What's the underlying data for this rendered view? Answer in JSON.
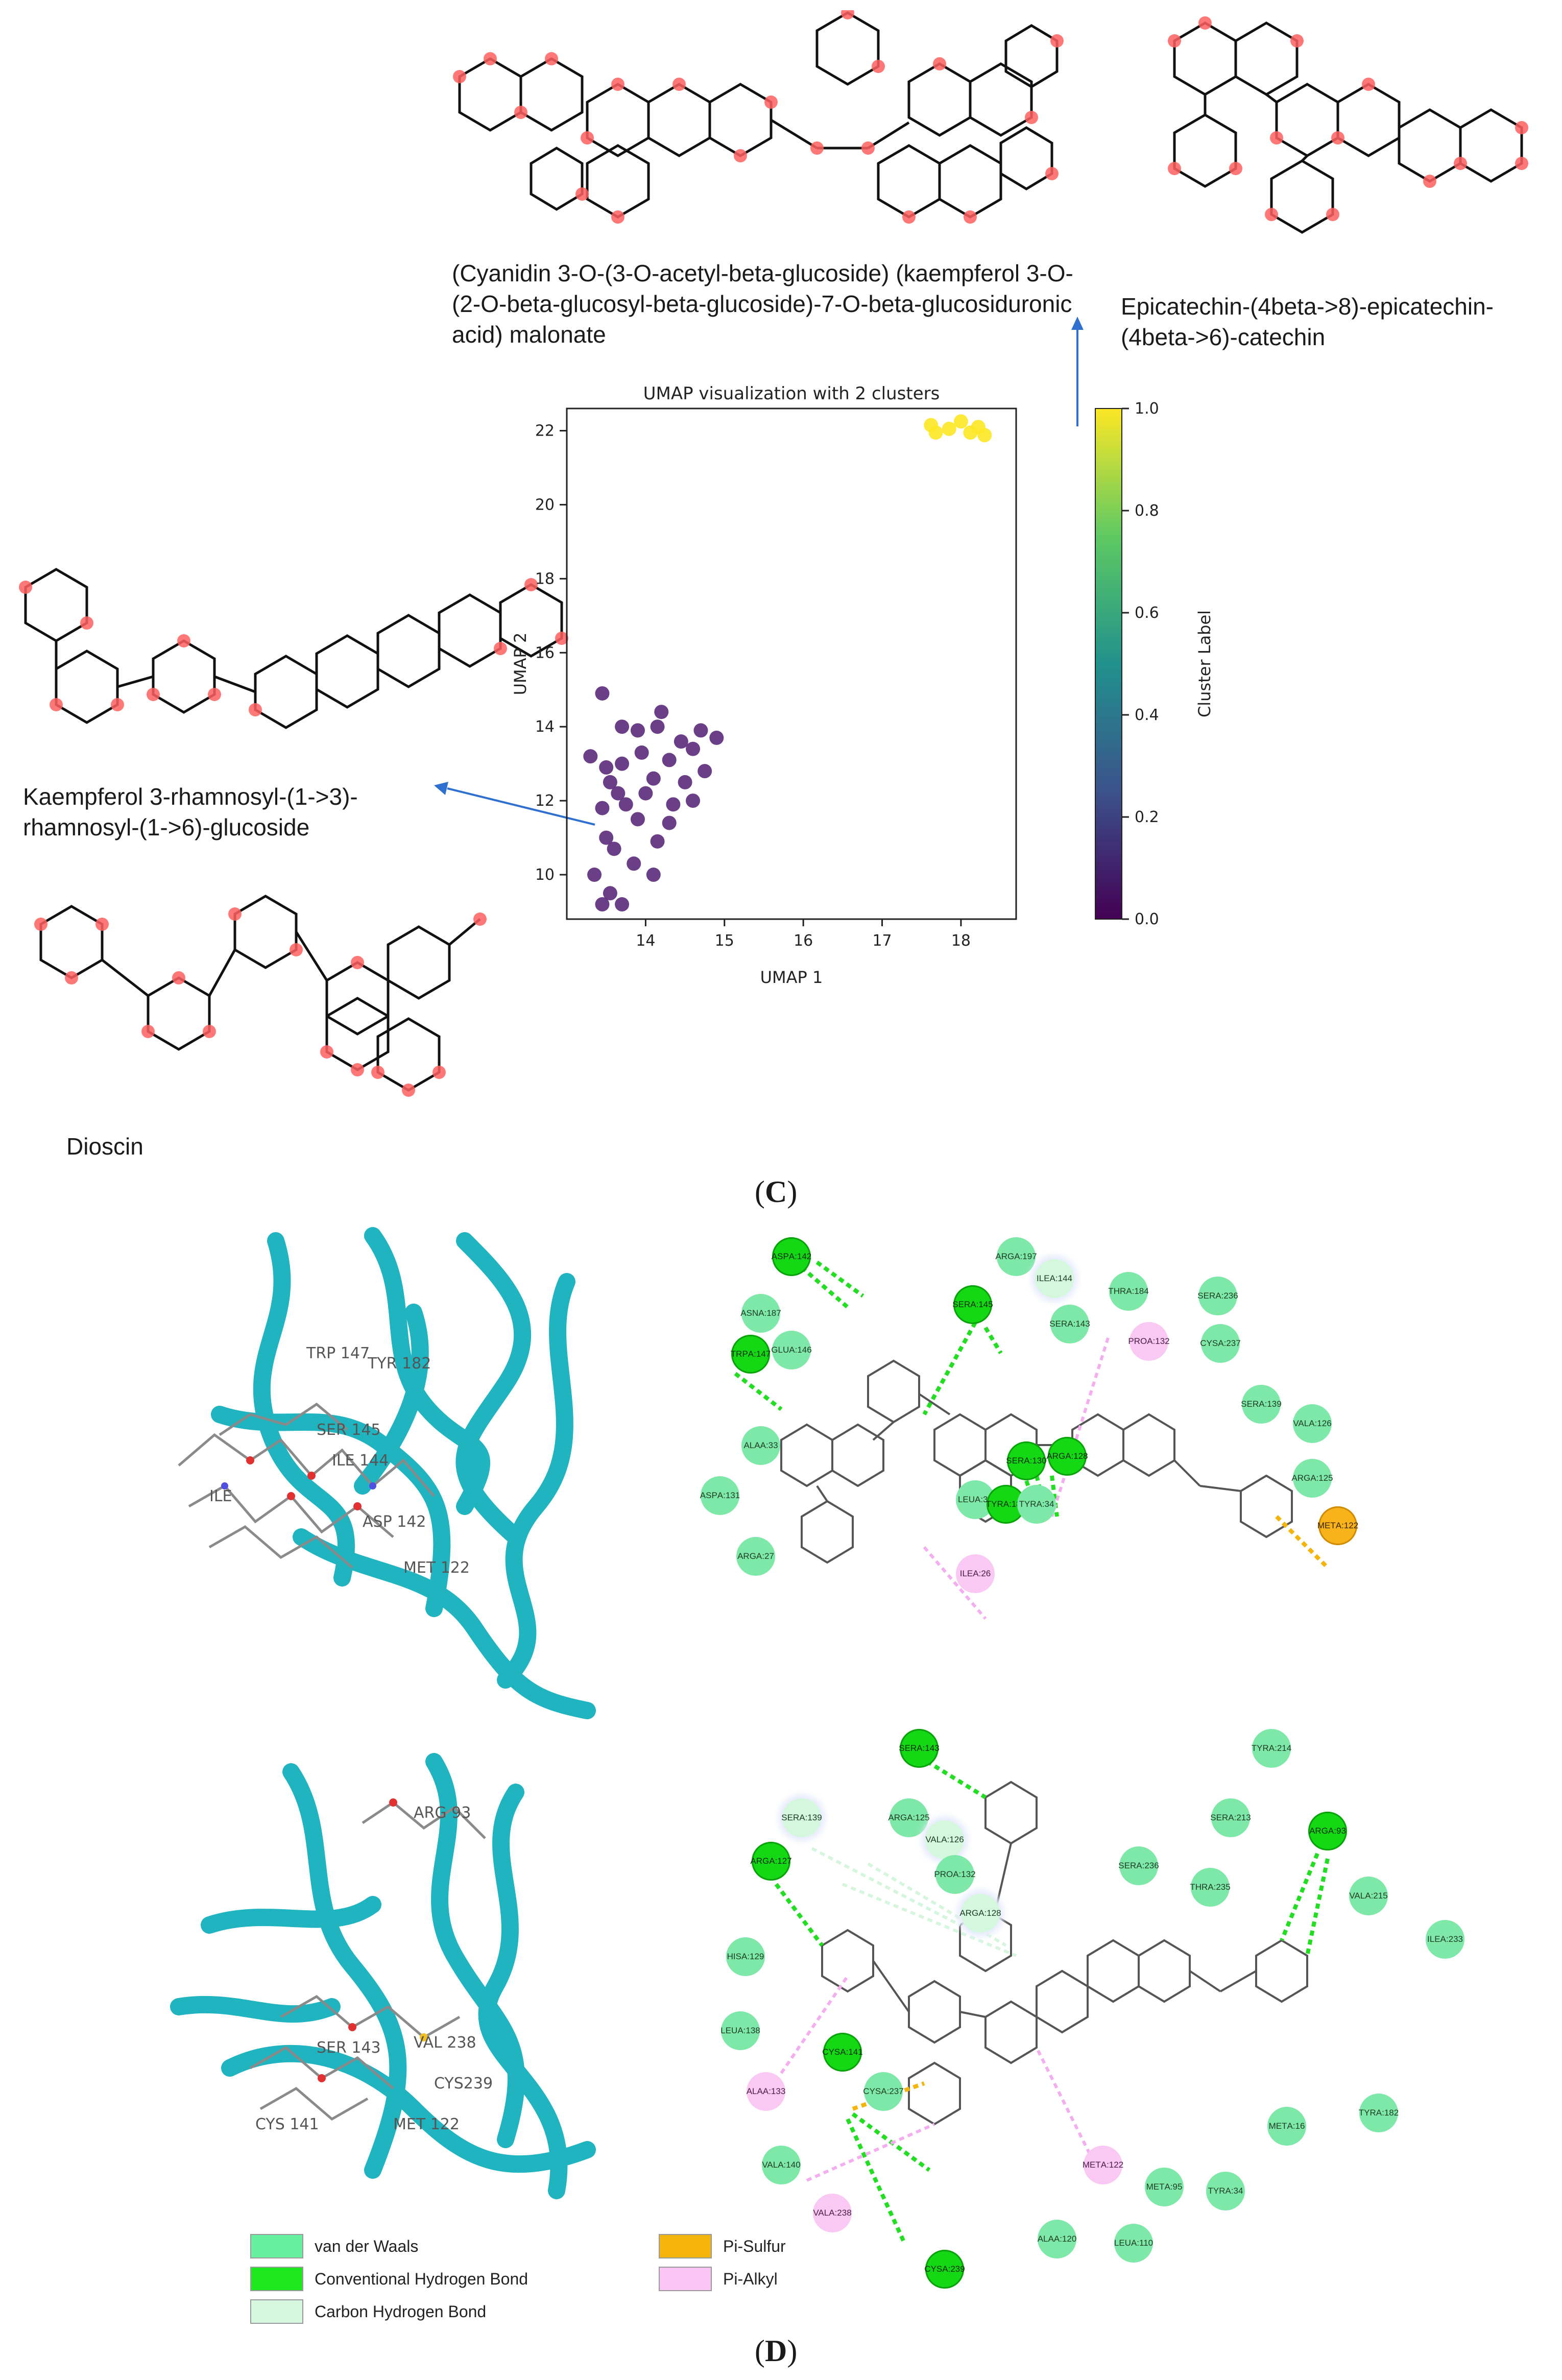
{
  "panel_c": {
    "letter": "C",
    "molecules": {
      "top_left": "(Cyanidin 3-O-(3-O-acetyl-beta-glucoside) (kaempferol 3-O-(2-O-beta-glucosyl-beta-glucoside)-7-O-beta-glucosiduronic acid) malonate",
      "top_right": "Epicatechin-(4beta->8)-epicatechin-(4beta->6)-catechin",
      "left_upper": "Kaempferol 3-rhamnosyl-(1->3)-rhamnosyl-(1->6)-glucoside",
      "left_lower": "Dioscin"
    },
    "colors": {
      "atom_highlight": "#ff5a5a",
      "arrow": "#2f6fd0"
    }
  },
  "chart_data": {
    "type": "scatter",
    "title": "UMAP visualization with 2 clusters",
    "xlabel": "UMAP 1",
    "ylabel": "UMAP 2",
    "xlim": [
      13.0,
      18.7
    ],
    "ylim": [
      8.8,
      22.6
    ],
    "xticks": [
      14,
      15,
      16,
      17,
      18
    ],
    "yticks": [
      10,
      12,
      14,
      16,
      18,
      20,
      22
    ],
    "colorbar": {
      "label": "Cluster Label",
      "ticks": [
        "0.0",
        "0.2",
        "0.4",
        "0.6",
        "0.8",
        "1.0"
      ],
      "colormap": "viridis"
    },
    "grid": false,
    "series": [
      {
        "cluster": 0,
        "color": "#5b2a7a",
        "points": [
          [
            13.45,
            14.9
          ],
          [
            13.3,
            13.2
          ],
          [
            13.5,
            12.9
          ],
          [
            13.7,
            14.0
          ],
          [
            13.9,
            13.9
          ],
          [
            14.2,
            14.4
          ],
          [
            14.15,
            14.0
          ],
          [
            14.45,
            13.6
          ],
          [
            14.7,
            13.9
          ],
          [
            14.9,
            13.7
          ],
          [
            14.6,
            13.4
          ],
          [
            14.3,
            13.1
          ],
          [
            13.95,
            13.3
          ],
          [
            13.7,
            13.0
          ],
          [
            13.55,
            12.5
          ],
          [
            14.1,
            12.6
          ],
          [
            14.5,
            12.5
          ],
          [
            14.75,
            12.8
          ],
          [
            14.35,
            11.9
          ],
          [
            14.0,
            12.2
          ],
          [
            13.75,
            11.9
          ],
          [
            13.45,
            11.8
          ],
          [
            13.5,
            11.0
          ],
          [
            13.9,
            11.5
          ],
          [
            14.3,
            11.4
          ],
          [
            14.15,
            10.9
          ],
          [
            13.6,
            10.7
          ],
          [
            13.35,
            10.0
          ],
          [
            13.55,
            9.5
          ],
          [
            13.7,
            9.2
          ],
          [
            13.85,
            10.3
          ],
          [
            14.1,
            10.0
          ],
          [
            13.45,
            9.2
          ],
          [
            13.65,
            12.2
          ],
          [
            14.6,
            12.0
          ]
        ]
      },
      {
        "cluster": 1,
        "color": "#fde725",
        "points": [
          [
            17.62,
            22.15
          ],
          [
            17.68,
            21.95
          ],
          [
            17.85,
            22.05
          ],
          [
            18.0,
            22.25
          ],
          [
            18.12,
            21.95
          ],
          [
            18.22,
            22.1
          ],
          [
            18.3,
            21.88
          ]
        ]
      }
    ]
  },
  "panel_d": {
    "letter": "D",
    "top_diagram": {
      "residues": [
        {
          "name": "ARG",
          "num": "A:197",
          "type": "vdw"
        },
        {
          "name": "ASP",
          "num": "A:142",
          "type": "hb"
        },
        {
          "name": "ILE",
          "num": "A:144",
          "type": "chb"
        },
        {
          "name": "THR",
          "num": "A:184",
          "type": "vdw"
        },
        {
          "name": "SER",
          "num": "A:236",
          "type": "vdw"
        },
        {
          "name": "ASN",
          "num": "A:187",
          "type": "vdw"
        },
        {
          "name": "SER",
          "num": "A:145",
          "type": "hb"
        },
        {
          "name": "SER",
          "num": "A:143",
          "type": "vdw"
        },
        {
          "name": "PRO",
          "num": "A:132",
          "type": "alk"
        },
        {
          "name": "CYS",
          "num": "A:237",
          "type": "vdw"
        },
        {
          "name": "GLU",
          "num": "A:146",
          "type": "vdw"
        },
        {
          "name": "TRP",
          "num": "A:147",
          "type": "hb"
        },
        {
          "name": "SER",
          "num": "A:139",
          "type": "vdw"
        },
        {
          "name": "VAL",
          "num": "A:126",
          "type": "vdw"
        },
        {
          "name": "ALA",
          "num": "A:33",
          "type": "vdw"
        },
        {
          "name": "ARG",
          "num": "A:125",
          "type": "vdw"
        },
        {
          "name": "ASP",
          "num": "A:131",
          "type": "vdw"
        },
        {
          "name": "SER",
          "num": "A:130",
          "type": "hb"
        },
        {
          "name": "ARG",
          "num": "A:128",
          "type": "hb"
        },
        {
          "name": "LEU",
          "num": "A:32",
          "type": "vdw"
        },
        {
          "name": "TYR",
          "num": "A:182",
          "type": "hb"
        },
        {
          "name": "TYR",
          "num": "A:34",
          "type": "vdw"
        },
        {
          "name": "MET",
          "num": "A:122",
          "type": "sulf"
        },
        {
          "name": "ARG",
          "num": "A:27",
          "type": "vdw"
        },
        {
          "name": "ILE",
          "num": "A:26",
          "type": "alk"
        }
      ]
    },
    "bottom_diagram": {
      "residues": [
        {
          "name": "SER",
          "num": "A:143",
          "type": "hb"
        },
        {
          "name": "TYR",
          "num": "A:214",
          "type": "vdw"
        },
        {
          "name": "SER",
          "num": "A:139",
          "type": "chb"
        },
        {
          "name": "ARG",
          "num": "A:125",
          "type": "vdw"
        },
        {
          "name": "SER",
          "num": "A:213",
          "type": "vdw"
        },
        {
          "name": "ARG",
          "num": "A:93",
          "type": "hb"
        },
        {
          "name": "VAL",
          "num": "A:126",
          "type": "chb"
        },
        {
          "name": "ARG",
          "num": "A:127",
          "type": "hb"
        },
        {
          "name": "PRO",
          "num": "A:132",
          "type": "vdw"
        },
        {
          "name": "ARG",
          "num": "A:128",
          "type": "chb"
        },
        {
          "name": "SER",
          "num": "A:236",
          "type": "vdw"
        },
        {
          "name": "THR",
          "num": "A:235",
          "type": "vdw"
        },
        {
          "name": "VAL",
          "num": "A:215",
          "type": "vdw"
        },
        {
          "name": "HIS",
          "num": "A:129",
          "type": "vdw"
        },
        {
          "name": "ILE",
          "num": "A:233",
          "type": "vdw"
        },
        {
          "name": "LEU",
          "num": "A:138",
          "type": "vdw"
        },
        {
          "name": "ALA",
          "num": "A:133",
          "type": "alk"
        },
        {
          "name": "CYS",
          "num": "A:237",
          "type": "vdw"
        },
        {
          "name": "TYR",
          "num": "A:182",
          "type": "vdw"
        },
        {
          "name": "CYS",
          "num": "A:141",
          "type": "hb"
        },
        {
          "name": "MET",
          "num": "A:16",
          "type": "vdw"
        },
        {
          "name": "VAL",
          "num": "A:140",
          "type": "vdw"
        },
        {
          "name": "MET",
          "num": "A:122",
          "type": "alk"
        },
        {
          "name": "MET",
          "num": "A:95",
          "type": "vdw"
        },
        {
          "name": "TYR",
          "num": "A:34",
          "type": "vdw"
        },
        {
          "name": "VAL",
          "num": "A:238",
          "type": "alk"
        },
        {
          "name": "ALA",
          "num": "A:120",
          "type": "vdw"
        },
        {
          "name": "LEU",
          "num": "A:110",
          "type": "vdw"
        },
        {
          "name": "CYS",
          "num": "A:239",
          "type": "hb"
        }
      ]
    },
    "structure_labels_top": [
      "TRP 147",
      "TYR 182",
      "SER 145",
      "ILE 144",
      "ILE",
      "ASP 142",
      "MET 122"
    ],
    "structure_labels_bottom": [
      "ARG 93",
      "SER 143",
      "VAL 238",
      "CYS239",
      "CYS 141",
      "MET 122"
    ],
    "legend": [
      {
        "label": "van der Waals",
        "color": "#66f0a0"
      },
      {
        "label": "Conventional Hydrogen Bond",
        "color": "#1ee81e"
      },
      {
        "label": "Carbon Hydrogen Bond",
        "color": "#d6f8df"
      },
      {
        "label": "Pi-Sulfur",
        "color": "#f5b40c"
      },
      {
        "label": "Pi-Alkyl",
        "color": "#fbc6f5"
      }
    ],
    "colors": {
      "ribbon": "#1fb4c0",
      "ligand": "#8a8a8a"
    }
  }
}
